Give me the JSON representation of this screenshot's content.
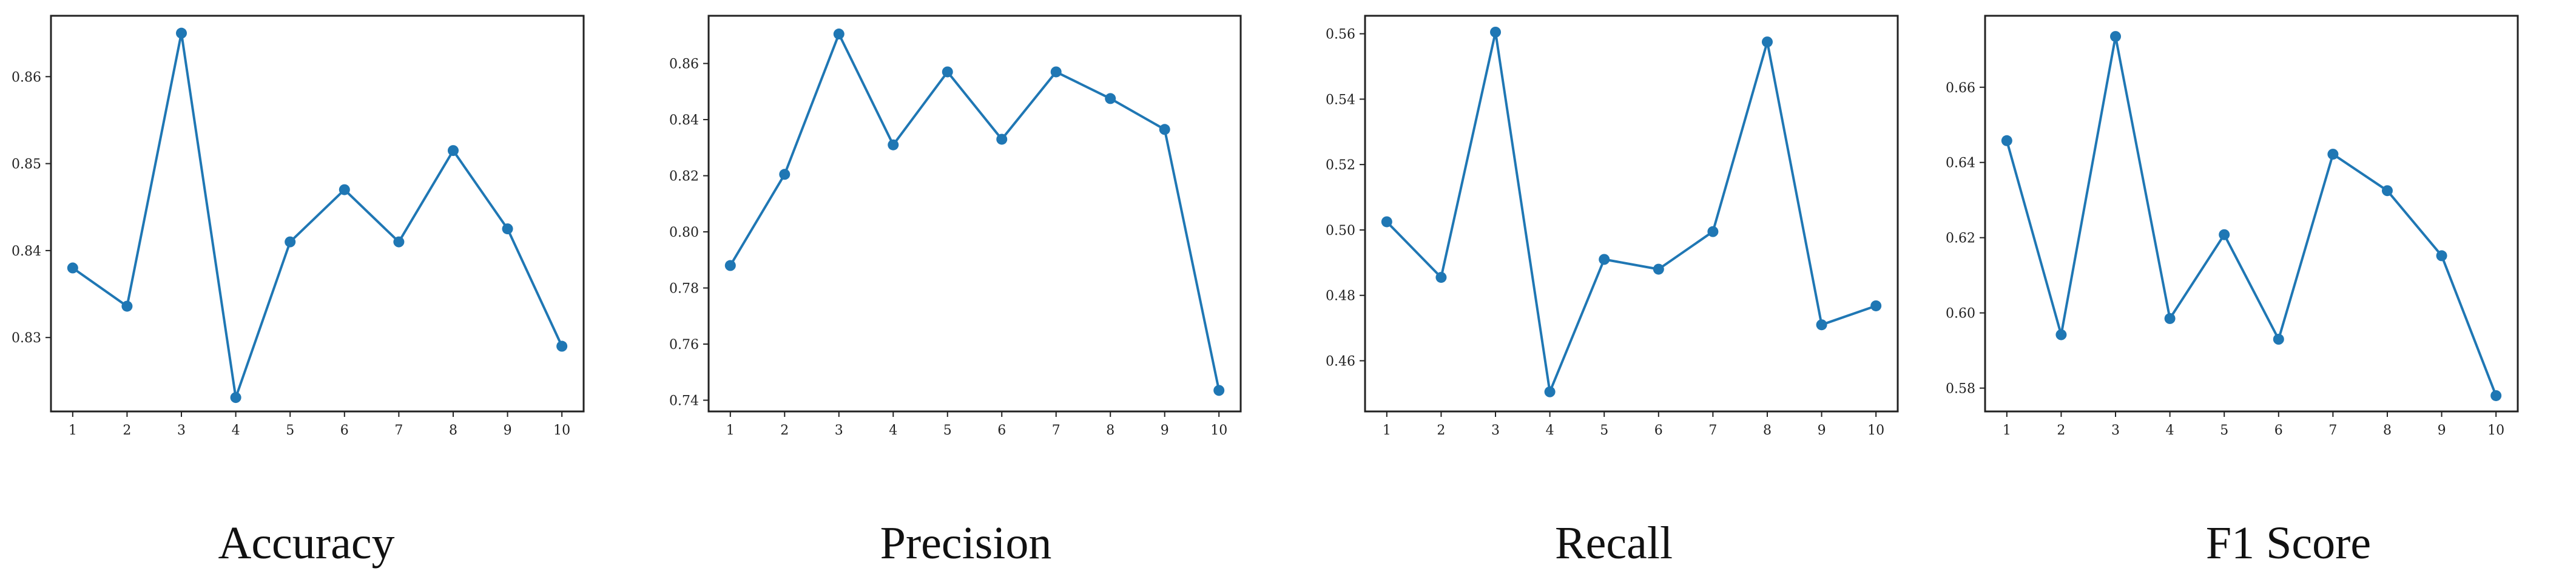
{
  "chart_data": [
    {
      "type": "line",
      "title": "Accuracy",
      "x": [
        1,
        2,
        3,
        4,
        5,
        6,
        7,
        8,
        9,
        10
      ],
      "values": [
        0.838,
        0.8336,
        0.865,
        0.8231,
        0.841,
        0.847,
        0.841,
        0.8515,
        0.8425,
        0.829
      ],
      "yticks": [
        0.83,
        0.84,
        0.85,
        0.86
      ],
      "ytick_labels": [
        "0.83",
        "0.84",
        "0.85",
        "0.86"
      ],
      "xlim": [
        0.6,
        10.4
      ],
      "ylim": [
        0.8215,
        0.867
      ],
      "color": "#1f77b4",
      "grid": false
    },
    {
      "type": "line",
      "title": "Precision",
      "x": [
        1,
        2,
        3,
        4,
        5,
        6,
        7,
        8,
        9,
        10
      ],
      "values": [
        0.788,
        0.8205,
        0.8705,
        0.831,
        0.857,
        0.833,
        0.857,
        0.8475,
        0.8365,
        0.7435
      ],
      "yticks": [
        0.74,
        0.76,
        0.78,
        0.8,
        0.82,
        0.84,
        0.86
      ],
      "ytick_labels": [
        "0.74",
        "0.76",
        "0.78",
        "0.80",
        "0.82",
        "0.84",
        "0.86"
      ],
      "xlim": [
        0.6,
        10.4
      ],
      "ylim": [
        0.736,
        0.877
      ],
      "color": "#1f77b4",
      "grid": false
    },
    {
      "type": "line",
      "title": "Recall",
      "x": [
        1,
        2,
        3,
        4,
        5,
        6,
        7,
        8,
        9,
        10
      ],
      "values": [
        0.5025,
        0.4855,
        0.5605,
        0.4505,
        0.491,
        0.488,
        0.4995,
        0.5575,
        0.471,
        0.4768
      ],
      "yticks": [
        0.46,
        0.48,
        0.5,
        0.52,
        0.54,
        0.56
      ],
      "ytick_labels": [
        "0.46",
        "0.48",
        "0.50",
        "0.52",
        "0.54",
        "0.56"
      ],
      "xlim": [
        0.6,
        10.4
      ],
      "ylim": [
        0.4445,
        0.5655
      ],
      "color": "#1f77b4",
      "grid": false
    },
    {
      "type": "line",
      "title": "F1 Score",
      "x": [
        1,
        2,
        3,
        4,
        5,
        6,
        7,
        8,
        9,
        10
      ],
      "values": [
        0.6458,
        0.5942,
        0.6735,
        0.5985,
        0.6208,
        0.593,
        0.6422,
        0.6325,
        0.6152,
        0.578
      ],
      "yticks": [
        0.58,
        0.6,
        0.62,
        0.64,
        0.66
      ],
      "ytick_labels": [
        "0.58",
        "0.60",
        "0.62",
        "0.64",
        "0.66"
      ],
      "xlim": [
        0.6,
        10.4
      ],
      "ylim": [
        0.5738,
        0.679
      ],
      "color": "#1f77b4",
      "grid": false
    }
  ]
}
